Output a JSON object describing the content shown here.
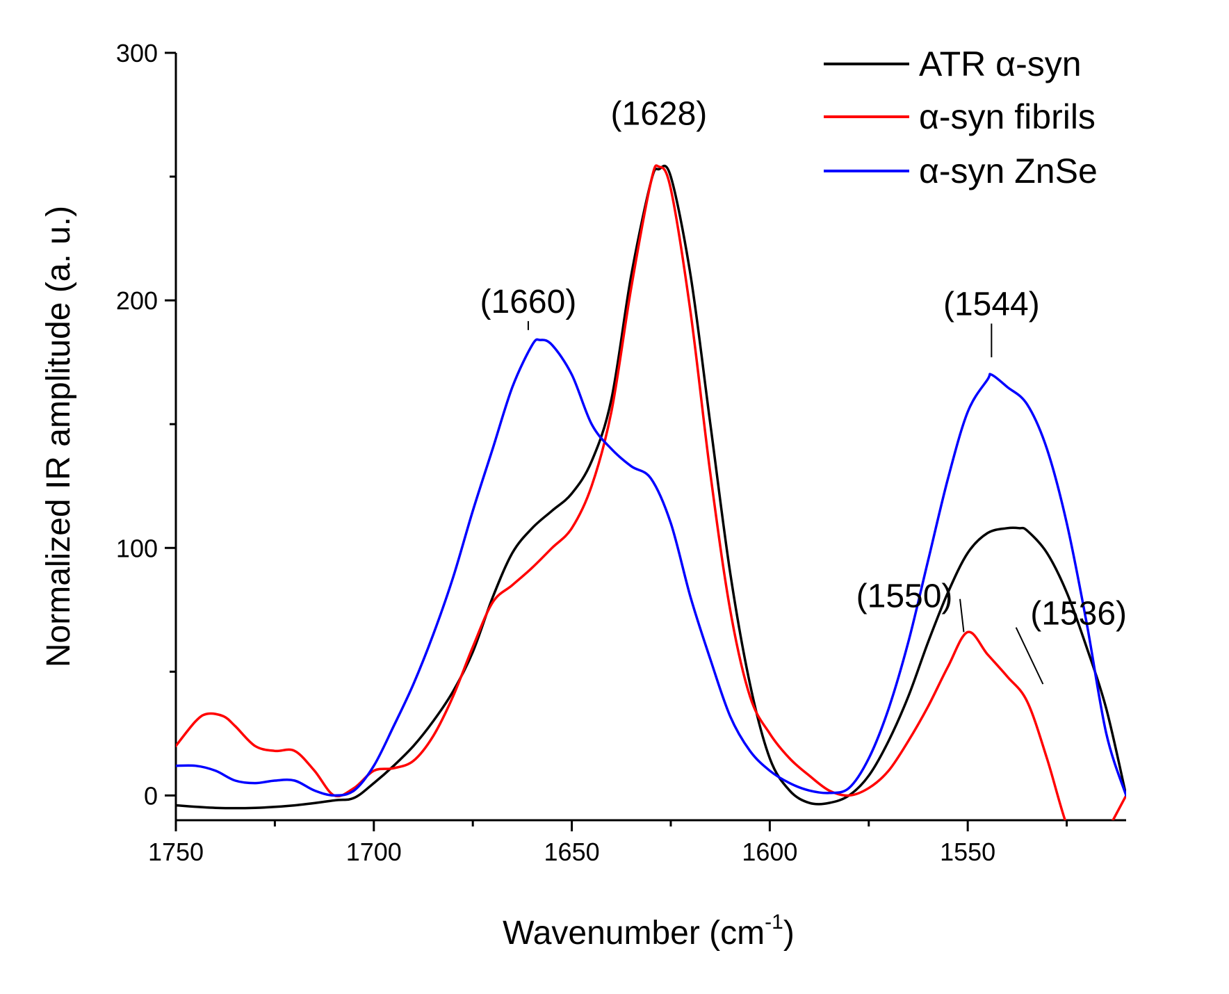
{
  "chart_data": {
    "type": "line",
    "title": "",
    "xlabel": "Wavenumber (cm",
    "xlabel_sup": "-1",
    "xlabel_close": ")",
    "ylabel": "Normalized IR amplitude (a. u.)",
    "xlim": [
      1750,
      1510
    ],
    "ylim": [
      -10,
      300
    ],
    "x_ticks": [
      1750,
      1700,
      1650,
      1600,
      1550
    ],
    "y_ticks": [
      0,
      100,
      200,
      300
    ],
    "x_tick_labels": [
      "1750",
      "1700",
      "1650",
      "1600",
      "1550"
    ],
    "y_tick_labels": [
      "0",
      "100",
      "200",
      "300"
    ],
    "grid": false,
    "legend_position": "top-right",
    "series": [
      {
        "name": "ATR α-syn",
        "color": "#000000",
        "x": [
          1750,
          1740,
          1730,
          1720,
          1710,
          1705,
          1700,
          1695,
          1690,
          1685,
          1680,
          1675,
          1670,
          1665,
          1660,
          1655,
          1650,
          1645,
          1640,
          1635,
          1630,
          1628,
          1625,
          1620,
          1615,
          1610,
          1605,
          1600,
          1595,
          1590,
          1585,
          1580,
          1575,
          1570,
          1565,
          1560,
          1555,
          1550,
          1545,
          1540,
          1537,
          1535,
          1530,
          1525,
          1520,
          1515,
          1510
        ],
        "y": [
          -4,
          -5,
          -5,
          -4,
          -2,
          -1,
          5,
          12,
          20,
          30,
          42,
          58,
          80,
          98,
          108,
          115,
          122,
          135,
          160,
          210,
          248,
          253,
          250,
          210,
          150,
          90,
          45,
          15,
          2,
          -3,
          -3,
          0,
          8,
          22,
          40,
          62,
          82,
          98,
          106,
          108,
          108,
          107,
          98,
          82,
          60,
          35,
          0
        ]
      },
      {
        "name": "α-syn fibrils",
        "color": "#ff0000",
        "x": [
          1750,
          1745,
          1742,
          1738,
          1735,
          1730,
          1725,
          1720,
          1715,
          1710,
          1705,
          1700,
          1695,
          1690,
          1685,
          1680,
          1675,
          1670,
          1665,
          1660,
          1655,
          1650,
          1645,
          1640,
          1635,
          1630,
          1628,
          1625,
          1620,
          1615,
          1610,
          1605,
          1600,
          1595,
          1590,
          1585,
          1580,
          1575,
          1570,
          1565,
          1560,
          1555,
          1550,
          1545,
          1540,
          1535,
          1530,
          1525,
          1520,
          1515,
          1510
        ],
        "y": [
          20,
          30,
          33,
          32,
          28,
          20,
          18,
          18,
          10,
          0,
          3,
          10,
          11,
          14,
          24,
          40,
          60,
          78,
          85,
          92,
          100,
          108,
          125,
          155,
          205,
          248,
          254,
          245,
          195,
          130,
          75,
          40,
          25,
          15,
          8,
          2,
          0,
          3,
          10,
          22,
          36,
          52,
          66,
          57,
          48,
          38,
          15,
          -12,
          -30,
          -15,
          0
        ]
      },
      {
        "name": "α-syn ZnSe",
        "color": "#0000ff",
        "x": [
          1750,
          1745,
          1740,
          1735,
          1730,
          1725,
          1720,
          1715,
          1710,
          1705,
          1700,
          1695,
          1690,
          1685,
          1680,
          1675,
          1670,
          1665,
          1660,
          1658,
          1655,
          1650,
          1645,
          1640,
          1635,
          1630,
          1625,
          1620,
          1615,
          1610,
          1605,
          1600,
          1595,
          1590,
          1585,
          1580,
          1575,
          1570,
          1565,
          1560,
          1555,
          1550,
          1545,
          1544,
          1540,
          1535,
          1530,
          1525,
          1520,
          1515,
          1510
        ],
        "y": [
          12,
          12,
          10,
          6,
          5,
          6,
          6,
          2,
          0,
          2,
          12,
          28,
          45,
          65,
          88,
          115,
          140,
          165,
          182,
          184,
          182,
          170,
          150,
          140,
          133,
          128,
          110,
          80,
          55,
          32,
          18,
          10,
          5,
          2,
          1,
          3,
          15,
          35,
          62,
          95,
          128,
          155,
          168,
          170,
          165,
          158,
          140,
          110,
          70,
          25,
          0
        ]
      }
    ],
    "annotations": [
      {
        "text": "(1660)",
        "x": 1661,
        "y": 195,
        "point": [
          1661,
          188
        ]
      },
      {
        "text": "(1628)",
        "x": 1628,
        "y": 271,
        "point": null
      },
      {
        "text": "(1544)",
        "x": 1544,
        "y": 194,
        "point": [
          1544,
          177
        ]
      },
      {
        "text": "(1550)",
        "x": 1566,
        "y": 76,
        "point": [
          1551,
          66
        ]
      },
      {
        "text": "(1536)",
        "x": 1522,
        "y": 69,
        "point": [
          1531,
          45
        ]
      }
    ]
  }
}
